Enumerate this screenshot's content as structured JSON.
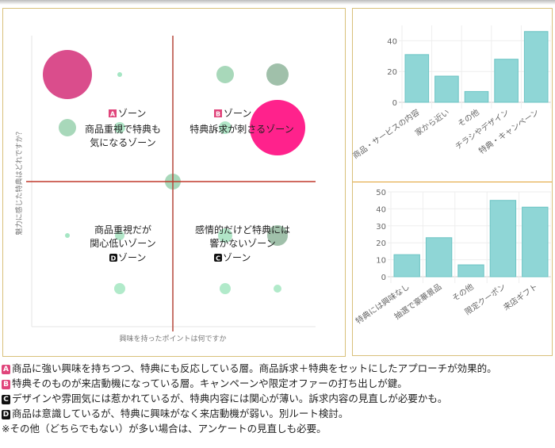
{
  "chart_data": [
    {
      "type": "scatter",
      "subtype": "bubble",
      "xlabel": "興味を持ったポイントは何ですか",
      "ylabel": "魅力に感じた特典はどれですか？",
      "quadrant_lines_color": "#c0392b",
      "zones": [
        {
          "badge": "A",
          "title": "ゾーン",
          "desc1": "商品重視で特典も",
          "desc2": "気になるゾーン",
          "badge_color": "#e0457b"
        },
        {
          "badge": "B",
          "title": "ゾーン",
          "desc1": "特典訴求が刺さるゾーン",
          "desc2": "",
          "badge_color": "#e0457b"
        },
        {
          "badge": "C",
          "title": "ゾーン",
          "desc1": "感情的だけど特典には",
          "desc2": "響かないゾーン",
          "badge_color": "#111111"
        },
        {
          "badge": "D",
          "title": "ゾーン",
          "desc1": "商品重視だが",
          "desc2": "関心低いゾーン",
          "badge_color": "#111111"
        }
      ],
      "points": [
        {
          "x": -2,
          "y": 2,
          "r": 31,
          "color": "#d63a7f"
        },
        {
          "x": -1,
          "y": 2,
          "r": 3,
          "color": "#9be3be"
        },
        {
          "x": 1,
          "y": 2,
          "r": 11,
          "color": "#9fd4b3"
        },
        {
          "x": 2,
          "y": 2,
          "r": 14,
          "color": "#96b9a1"
        },
        {
          "x": -2,
          "y": 1,
          "r": 11,
          "color": "#9fd4b3"
        },
        {
          "x": -1,
          "y": 1,
          "r": 7,
          "color": "#a8e3c2"
        },
        {
          "x": 1,
          "y": 1,
          "r": 8,
          "color": "#a8e3c2"
        },
        {
          "x": 2,
          "y": 1,
          "r": 35,
          "color": "#ff0a80"
        },
        {
          "x": 0,
          "y": 0,
          "r": 10,
          "color": "#9fd4b3"
        },
        {
          "x": -2,
          "y": -1,
          "r": 3,
          "color": "#9be3be"
        },
        {
          "x": -1,
          "y": -1,
          "r": 6,
          "color": "#a8e3c2"
        },
        {
          "x": 1,
          "y": -1,
          "r": 9,
          "color": "#a8e3c2"
        },
        {
          "x": 2,
          "y": -1,
          "r": 13,
          "color": "#96b9a1"
        },
        {
          "x": -1,
          "y": -2,
          "r": 7,
          "color": "#a8e8c4"
        },
        {
          "x": 1,
          "y": -2,
          "r": 7,
          "color": "#a8e8c4"
        },
        {
          "x": 2,
          "y": -2,
          "r": 5,
          "color": "#a8e8c4"
        }
      ]
    },
    {
      "type": "bar",
      "categories": [
        "商品・サービスの内容",
        "家から近い",
        "その他",
        "チラシやデザイン",
        "特典・キャンペーン"
      ],
      "values": [
        31,
        17,
        7,
        28,
        46
      ],
      "ylim": [
        0,
        50
      ],
      "yticks": [
        0,
        20,
        40
      ],
      "color": "#8fd6d6",
      "grid": true
    },
    {
      "type": "bar",
      "categories": [
        "特典には興味なし",
        "抽選で豪華景品",
        "その他",
        "限定クーポン",
        "来店ギフト"
      ],
      "values": [
        13,
        23,
        7,
        45,
        41
      ],
      "ylim": [
        0,
        50
      ],
      "yticks": [
        0,
        10,
        20,
        30,
        40,
        50
      ],
      "color": "#8fd6d6",
      "grid": true
    }
  ],
  "notes": [
    {
      "badge": "A",
      "color": "#e0457b",
      "text": "商品に強い興味を持ちつつ、特典にも反応している層。商品訴求＋特典をセットにしたアプローチが効果的。"
    },
    {
      "badge": "B",
      "color": "#e0457b",
      "text": "特典そのものが来店動機になっている層。キャンペーンや限定オファーの打ち出しが鍵。"
    },
    {
      "badge": "C",
      "color": "#111111",
      "text": "デザインや雰囲気には惹かれているが、特典内容には関心が薄い。訴求内容の見直しが必要かも。"
    },
    {
      "badge": "D",
      "color": "#111111",
      "text": "商品は意識しているが、特典に興味がなく来店動機が弱い。別ルート検討。"
    },
    {
      "badge": "",
      "color": "",
      "text": "※その他（どちらでもない）が多い場合は、アンケートの見直しも必要。"
    }
  ]
}
